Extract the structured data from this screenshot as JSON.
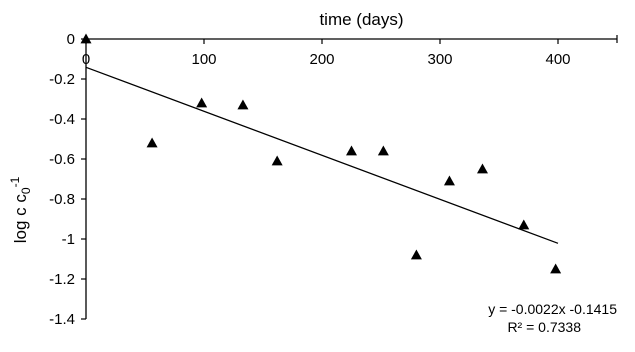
{
  "chart_data": {
    "type": "scatter",
    "title": "",
    "xlabel": "time (days)",
    "ylabel": "log c c0-1",
    "ylabel_parts": {
      "main": "log c c",
      "sub": "0",
      "sup": "-1"
    },
    "xlim": [
      0,
      450
    ],
    "ylim": [
      -1.4,
      0
    ],
    "x_axis_position": "top",
    "grid": false,
    "legend": "none",
    "x_ticks": [
      0,
      100,
      200,
      300,
      400
    ],
    "y_ticks": [
      0,
      -0.2,
      -0.4,
      -0.6,
      -0.8,
      -1,
      -1.2,
      -1.4
    ],
    "x_tick_labels": [
      "0",
      "100",
      "200",
      "300",
      "400"
    ],
    "y_tick_labels": [
      "0",
      "-0.2",
      "-0.4",
      "-0.6",
      "-0.8",
      "-1",
      "-1.2",
      "-1.4"
    ],
    "points": [
      {
        "x": 0,
        "y": 0
      },
      {
        "x": 56,
        "y": -0.52
      },
      {
        "x": 98,
        "y": -0.32
      },
      {
        "x": 133,
        "y": -0.33
      },
      {
        "x": 162,
        "y": -0.61
      },
      {
        "x": 225,
        "y": -0.56
      },
      {
        "x": 252,
        "y": -0.56
      },
      {
        "x": 280,
        "y": -1.08
      },
      {
        "x": 308,
        "y": -0.71
      },
      {
        "x": 336,
        "y": -0.65
      },
      {
        "x": 371,
        "y": -0.93
      },
      {
        "x": 398,
        "y": -1.15
      }
    ],
    "trendline": {
      "slope": -0.0022,
      "intercept": -0.1415,
      "x_range": [
        0,
        400
      ],
      "equation": "y = -0.0022x -0.1415",
      "r_squared": "R² = 0.7338"
    },
    "marker": "triangle",
    "colors": {
      "marker": "#000000",
      "line": "#000000",
      "axis": "#000000"
    }
  }
}
